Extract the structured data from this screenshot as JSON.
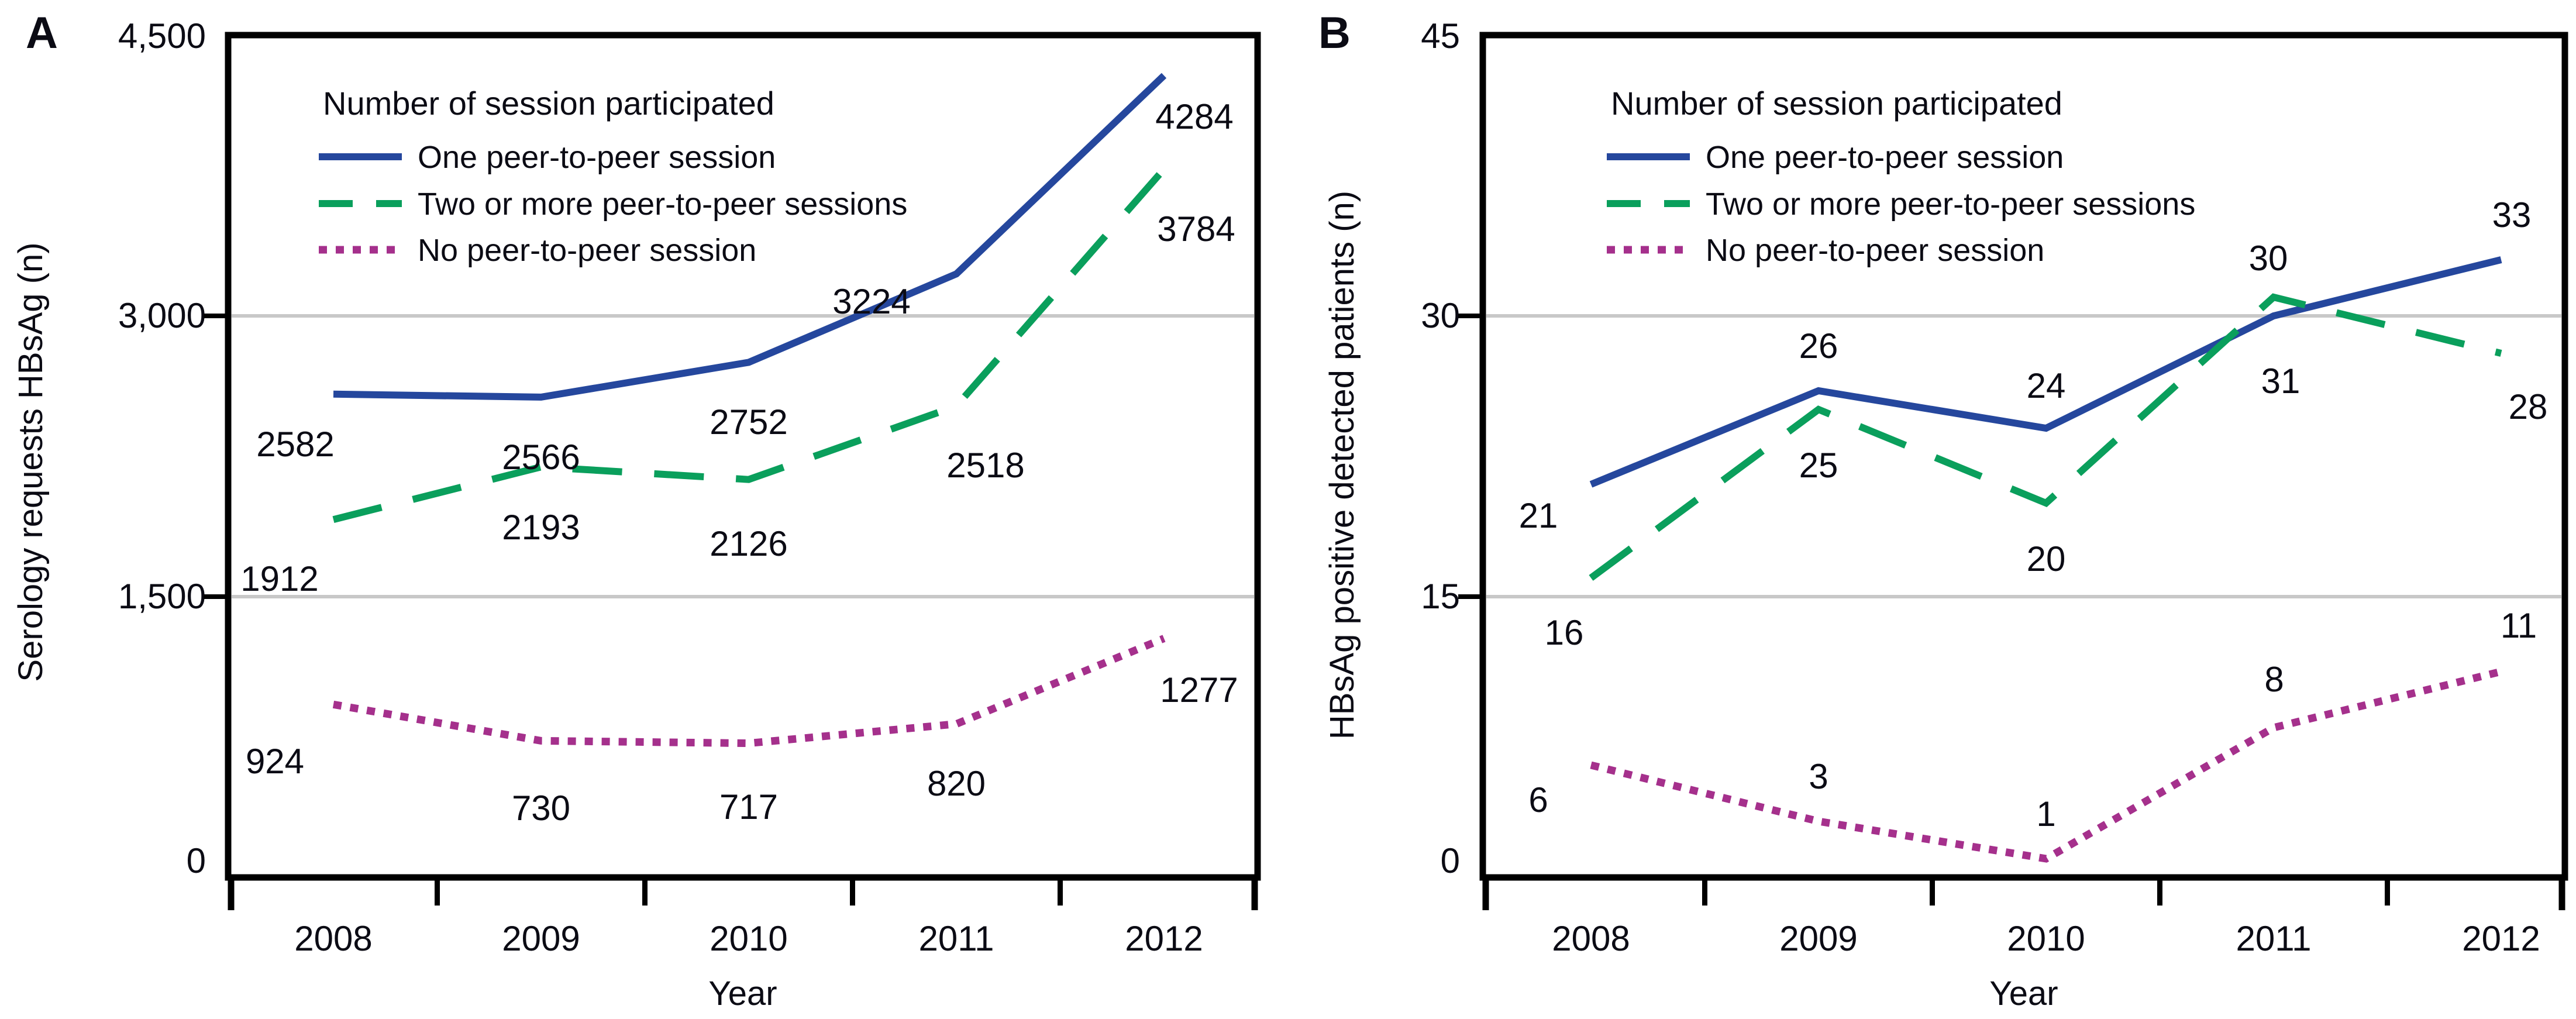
{
  "figure": {
    "legend_title": "Number of session participated",
    "xlabel": "Year",
    "years": [
      "2008",
      "2009",
      "2010",
      "2011",
      "2012"
    ],
    "colors": {
      "one_session": "#25479d",
      "two_or_more": "#0a9f5c",
      "no_session": "#a5308c",
      "gridline": "#c8c8c8",
      "frame": "#000000",
      "text": "#0b0b14"
    }
  },
  "chart_data": [
    {
      "panel": "A",
      "type": "line",
      "ylabel": "Serology requests HBsAg (n)",
      "xlabel": "Year",
      "x": [
        "2008",
        "2009",
        "2010",
        "2011",
        "2012"
      ],
      "ylim": [
        0,
        4500
      ],
      "ytick_labels": [
        "0",
        "1,500",
        "3,000",
        "4,500"
      ],
      "ytick_values": [
        0,
        1500,
        3000,
        4500
      ],
      "grid": "horizontal gridlines at 1,500 and 3,000",
      "legend_position": "top-left inside plot",
      "legend_title": "Number of session participated",
      "series": [
        {
          "name": "One peer-to-peer session",
          "style": "solid",
          "color": "#25479d",
          "values": [
            2582,
            2566,
            2752,
            3224,
            4284
          ]
        },
        {
          "name": "Two or more peer-to-peer sessions",
          "style": "dashed",
          "color": "#0a9f5c",
          "values": [
            1912,
            2193,
            2126,
            2518,
            3784
          ]
        },
        {
          "name": "No peer-to-peer session",
          "style": "dotted",
          "color": "#a5308c",
          "values": [
            924,
            730,
            717,
            820,
            1277
          ]
        }
      ]
    },
    {
      "panel": "B",
      "type": "line",
      "ylabel": "HBsAg positive detected patients (n)",
      "xlabel": "Year",
      "x": [
        "2008",
        "2009",
        "2010",
        "2011",
        "2012"
      ],
      "ylim": [
        0,
        45
      ],
      "ytick_labels": [
        "0",
        "15",
        "30",
        "45"
      ],
      "ytick_values": [
        0,
        15,
        30,
        45
      ],
      "grid": "horizontal gridlines at 15 and 30",
      "legend_position": "top-left inside plot",
      "legend_title": "Number of session participated",
      "series": [
        {
          "name": "One peer-to-peer session",
          "style": "solid",
          "color": "#25479d",
          "values": [
            21,
            26,
            24,
            30,
            33
          ]
        },
        {
          "name": "Two or more peer-to-peer sessions",
          "style": "dashed",
          "color": "#0a9f5c",
          "values": [
            16,
            25,
            20,
            31,
            28
          ]
        },
        {
          "name": "No peer-to-peer session",
          "style": "dotted",
          "color": "#a5308c",
          "values": [
            6,
            3,
            1,
            8,
            11
          ]
        }
      ]
    }
  ]
}
